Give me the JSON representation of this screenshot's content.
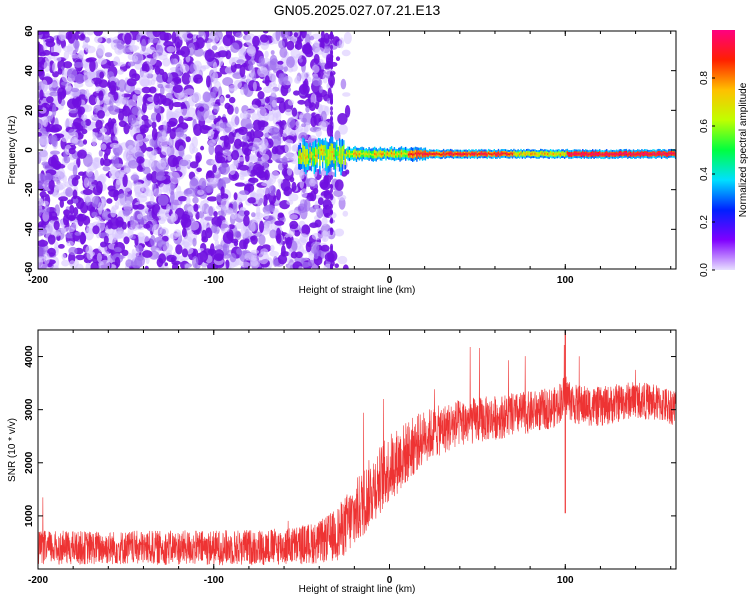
{
  "title": "GN05.2025.027.07.21.E13",
  "chart_data": [
    {
      "type": "heatmap",
      "xlabel": "Height of straight line (km)",
      "ylabel": "Frequency (Hz)",
      "xlim": [
        -200,
        163
      ],
      "ylim": [
        -60,
        60
      ],
      "x_ticks": [
        "-200",
        "-100",
        "0",
        "100"
      ],
      "y_ticks": [
        "-60",
        "-40",
        "-20",
        "0",
        "20",
        "40",
        "60"
      ],
      "colorbar": {
        "label": "Normalized spectral amplitude",
        "range": [
          0,
          1
        ],
        "ticks": [
          "0.0",
          "0.2",
          "0.4",
          "0.6",
          "0.8"
        ],
        "colormap": [
          "#e8e0ff",
          "#8000ff",
          "#0020ff",
          "#00e0ff",
          "#00ff40",
          "#c0ff00",
          "#ffc000",
          "#ff2000",
          "#ff0080"
        ]
      },
      "noise_region_x": [
        -200,
        -33
      ],
      "signal_band_center_hz": -2,
      "signal_onset_x": -52
    },
    {
      "type": "line",
      "xlabel": "Height of straight line (km)",
      "ylabel": "SNR (10 * v/v)",
      "xlim": [
        -200,
        163
      ],
      "ylim": [
        0,
        4500
      ],
      "x_ticks": [
        "-200",
        "-100",
        "0",
        "100"
      ],
      "y_ticks": [
        "1000",
        "2000",
        "3000",
        "4000"
      ],
      "series": [
        {
          "color": "#ee3333",
          "x": [
            -200,
            -150,
            -100,
            -60,
            -40,
            -30,
            -20,
            -10,
            0,
            10,
            20,
            40,
            60,
            80,
            95,
            100,
            105,
            120,
            140,
            163
          ],
          "y": [
            400,
            400,
            400,
            420,
            500,
            650,
            1000,
            1500,
            1900,
            2200,
            2500,
            2750,
            2850,
            2950,
            3050,
            3300,
            3100,
            3050,
            3200,
            3050
          ],
          "band": [
            320,
            320,
            330,
            350,
            400,
            500,
            650,
            650,
            650,
            600,
            500,
            450,
            420,
            400,
            380,
            400,
            380,
            380,
            350,
            350
          ]
        }
      ],
      "annotations": [
        {
          "x": 100,
          "y_min": 1050,
          "y_max": 4450
        }
      ]
    }
  ]
}
